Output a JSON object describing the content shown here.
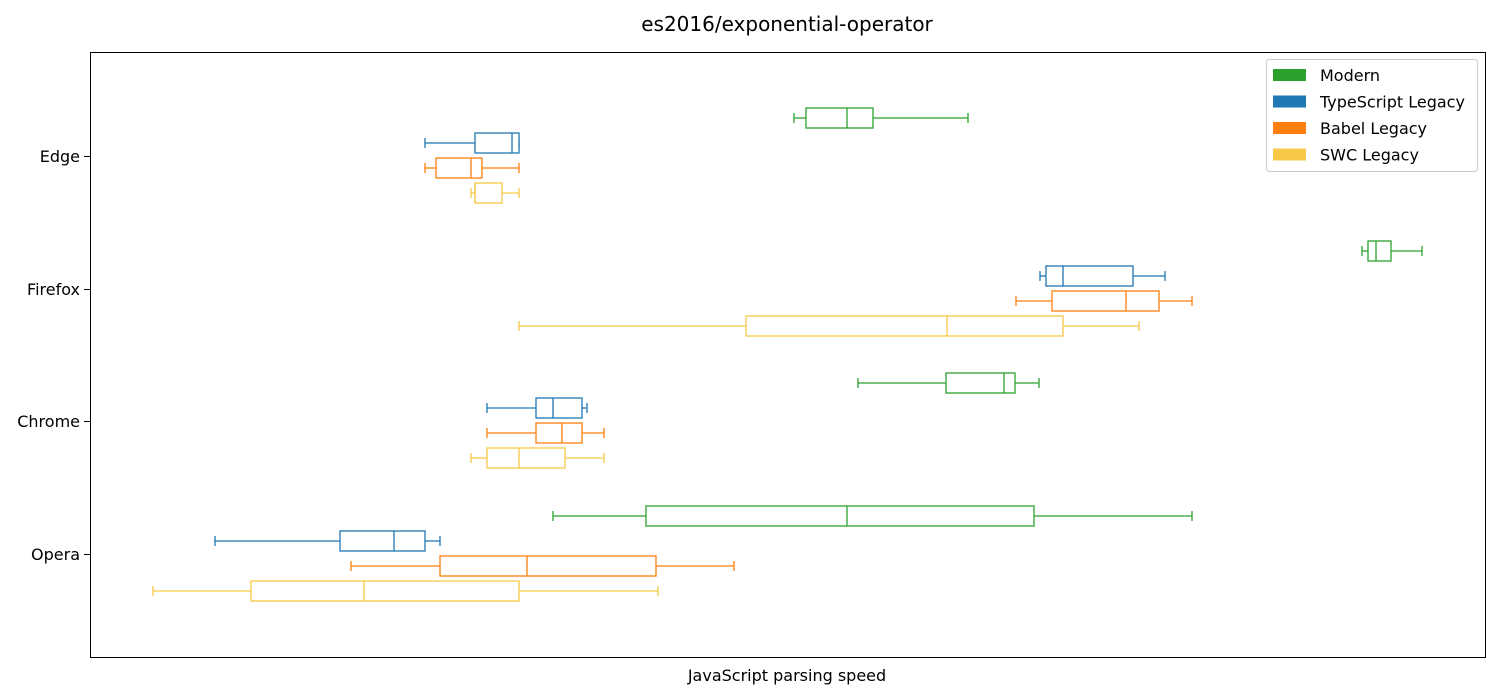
{
  "chart_data": {
    "type": "boxplot",
    "orientation": "horizontal",
    "title": "es2016/exponential-operator",
    "xlabel": "JavaScript parsing speed",
    "ylabel": "",
    "x_ticks_shown": false,
    "grid": false,
    "legend_position": "top-right",
    "categories": [
      "Edge",
      "Firefox",
      "Chrome",
      "Opera"
    ],
    "series": [
      {
        "name": "Modern",
        "color": "#2ca02c",
        "boxes": [
          {
            "category": "Edge",
            "whisker_low": 794,
            "q1": 806,
            "median": 847,
            "q3": 873,
            "whisker_high": 968
          },
          {
            "category": "Firefox",
            "whisker_low": 1362,
            "q1": 1368,
            "median": 1376,
            "q3": 1391,
            "whisker_high": 1422
          },
          {
            "category": "Chrome",
            "whisker_low": 858,
            "q1": 946,
            "median": 1004,
            "q3": 1015,
            "whisker_high": 1039
          },
          {
            "category": "Opera",
            "whisker_low": 553,
            "q1": 646,
            "median": 847,
            "q3": 1034,
            "whisker_high": 1192
          }
        ]
      },
      {
        "name": "TypeScript Legacy",
        "color": "#1f77b4",
        "boxes": [
          {
            "category": "Edge",
            "whisker_low": 425,
            "q1": 475,
            "median": 512,
            "q3": 519,
            "whisker_high": 519
          },
          {
            "category": "Firefox",
            "whisker_low": 1040,
            "q1": 1046,
            "median": 1063,
            "q3": 1133,
            "whisker_high": 1165
          },
          {
            "category": "Chrome",
            "whisker_low": 487,
            "q1": 536,
            "median": 553,
            "q3": 582,
            "whisker_high": 587
          },
          {
            "category": "Opera",
            "whisker_low": 215,
            "q1": 340,
            "median": 394,
            "q3": 425,
            "whisker_high": 440
          }
        ]
      },
      {
        "name": "Babel Legacy",
        "color": "#ff7f0e",
        "boxes": [
          {
            "category": "Edge",
            "whisker_low": 425,
            "q1": 436,
            "median": 471,
            "q3": 482,
            "whisker_high": 519
          },
          {
            "category": "Firefox",
            "whisker_low": 1016,
            "q1": 1052,
            "median": 1126,
            "q3": 1159,
            "whisker_high": 1192
          },
          {
            "category": "Chrome",
            "whisker_low": 487,
            "q1": 536,
            "median": 562,
            "q3": 582,
            "whisker_high": 604
          },
          {
            "category": "Opera",
            "whisker_low": 351,
            "q1": 440,
            "median": 527,
            "q3": 656,
            "whisker_high": 734
          }
        ]
      },
      {
        "name": "SWC Legacy",
        "color": "#f7c948",
        "boxes": [
          {
            "category": "Edge",
            "whisker_low": 471,
            "q1": 475,
            "median": 475,
            "q3": 502,
            "whisker_high": 519
          },
          {
            "category": "Firefox",
            "whisker_low": 519,
            "q1": 746,
            "median": 947,
            "q3": 1063,
            "whisker_high": 1139
          },
          {
            "category": "Chrome",
            "whisker_low": 471,
            "q1": 487,
            "median": 519,
            "q3": 565,
            "whisker_high": 604
          },
          {
            "category": "Opera",
            "whisker_low": 153,
            "q1": 251,
            "median": 364,
            "q3": 519,
            "whisker_high": 658
          }
        ]
      }
    ],
    "xlim": [
      90,
      1485
    ]
  }
}
